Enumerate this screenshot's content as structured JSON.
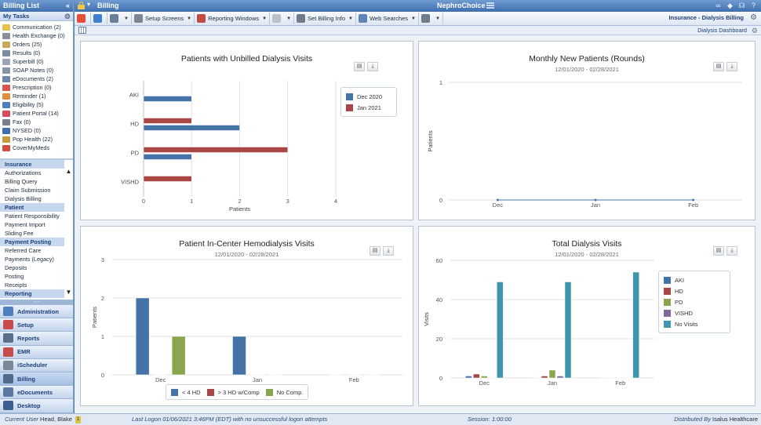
{
  "left_panel": {
    "title": "Billing List",
    "collapse_glyph": "«",
    "tasks_header": "My Tasks",
    "tasks": [
      {
        "label": "Communication (2)",
        "icon": "envelope-icon",
        "color": "#e8c14a"
      },
      {
        "label": "Health Exchange (0)",
        "icon": "exchange-icon",
        "color": "#8a8f99"
      },
      {
        "label": "Orders (25)",
        "icon": "orders-icon",
        "color": "#c9a85a"
      },
      {
        "label": "Results (0)",
        "icon": "results-icon",
        "color": "#7c8da1"
      },
      {
        "label": "Superbill (0)",
        "icon": "superbill-icon",
        "color": "#9aa6b5"
      },
      {
        "label": "SOAP Notes (0)",
        "icon": "soap-notes-icon",
        "color": "#8794a6"
      },
      {
        "label": "eDocuments (2)",
        "icon": "edocuments-icon",
        "color": "#6b86a8"
      },
      {
        "label": "Prescription (0)",
        "icon": "prescription-icon",
        "color": "#d7524a"
      },
      {
        "label": "Reminder (1)",
        "icon": "reminder-icon",
        "color": "#e28b3c"
      },
      {
        "label": "Eligibility (5)",
        "icon": "umbrella-icon",
        "color": "#4f7fc0"
      },
      {
        "label": "Patient Portal (14)",
        "icon": "heart-icon",
        "color": "#d84b5a"
      },
      {
        "label": "Fax (0)",
        "icon": "fax-icon",
        "color": "#7a7f88"
      },
      {
        "label": "NYSED (0)",
        "icon": "nysed-icon",
        "color": "#3d6fb0"
      },
      {
        "label": "Pop Health (22)",
        "icon": "pop-health-icon",
        "color": "#c99a3c"
      },
      {
        "label": "CoverMyMeds",
        "icon": "covermymeds-icon",
        "color": "#d14c3f"
      }
    ],
    "nav": [
      {
        "label": "Insurance",
        "section": true
      },
      {
        "label": "Authorizations",
        "section": false
      },
      {
        "label": "Billing Query",
        "section": false
      },
      {
        "label": "Claim Submission",
        "section": false
      },
      {
        "label": "Dialysis Billing",
        "section": false
      },
      {
        "label": "Patient",
        "section": true
      },
      {
        "label": "Patient Responsibility",
        "section": false
      },
      {
        "label": "Payment Import",
        "section": false
      },
      {
        "label": "Sliding Fee",
        "section": false
      },
      {
        "label": "Payment Posting",
        "section": true
      },
      {
        "label": "Referred Care",
        "section": false
      },
      {
        "label": "Payments (Legacy)",
        "section": false
      },
      {
        "label": "Deposits",
        "section": false
      },
      {
        "label": "Posting",
        "section": false
      },
      {
        "label": "Receipts",
        "section": false
      },
      {
        "label": "Reporting",
        "section": true
      }
    ],
    "grip_text": ".....",
    "modules": [
      {
        "label": "Administration",
        "icon": "administration-icon",
        "color": "#4e7fbf",
        "active": false
      },
      {
        "label": "Setup",
        "icon": "setup-icon",
        "color": "#c94c4c",
        "active": false
      },
      {
        "label": "Reports",
        "icon": "reports-icon",
        "color": "#5a6f8c",
        "active": false
      },
      {
        "label": "EMR",
        "icon": "emr-icon",
        "color": "#c94c4c",
        "active": false
      },
      {
        "label": "iScheduler",
        "icon": "ischeduler-icon",
        "color": "#7a8794",
        "active": false
      },
      {
        "label": "Billing",
        "icon": "billing-icon",
        "color": "#4f6c8f",
        "active": true
      },
      {
        "label": "eDocuments",
        "icon": "edocuments-module-icon",
        "color": "#5b7aa3",
        "active": false
      },
      {
        "label": "Desktop",
        "icon": "desktop-icon",
        "color": "#3c5f8e",
        "active": false
      }
    ]
  },
  "topbar": {
    "module_name": "Billing",
    "brand": "NephroChoice",
    "icons": [
      "binoculars-icon",
      "cap-icon",
      "headset-icon",
      "help-icon"
    ],
    "icon_glyphs": [
      "∞",
      "◆",
      "☊",
      "?"
    ]
  },
  "toolbar": {
    "buttons": [
      {
        "label": "",
        "icon": "home-icon",
        "color": "#e44e39",
        "dropdown": false
      },
      {
        "label": "",
        "icon": "refresh-icon",
        "color": "#3f7fcf",
        "dropdown": false
      },
      {
        "label": "",
        "icon": "card-icon",
        "color": "#6b7f99",
        "dropdown": true
      },
      {
        "label": "Setup Screens",
        "icon": "gear-icon",
        "color": "#7b8797",
        "dropdown": true
      },
      {
        "label": "Reporting Windows",
        "icon": "reporting-windows-icon",
        "color": "#c14a42",
        "dropdown": true
      },
      {
        "label": "",
        "icon": "clock-icon",
        "color": "#b9c1cb",
        "dropdown": true
      },
      {
        "label": "Set Billing Info",
        "icon": "set-billing-icon",
        "color": "#6d7b8c",
        "dropdown": true
      },
      {
        "label": "Web Searches",
        "icon": "web-search-icon",
        "color": "#5e84b8",
        "dropdown": true
      },
      {
        "label": "",
        "icon": "graduation-cap-icon",
        "color": "#6f7c8a",
        "dropdown": true
      }
    ],
    "context_label": "Insurance - Dialysis Billing"
  },
  "subbar": {
    "dashboard_label": "Dialysis Dashboard"
  },
  "panels": {
    "unbilled": {
      "title": "Patients with Unbilled Dialysis Visits"
    },
    "monthly": {
      "title": "Monthly New Patients (Rounds)",
      "subtitle": "12/01/2020 - 02/28/2021"
    },
    "incenter": {
      "title": "Patient In-Center Hemodialysis Visits",
      "subtitle": "12/01/2020 - 02/28/2021"
    },
    "total": {
      "title": "Total Dialysis Visits",
      "subtitle": "12/01/2020 - 02/28/2021"
    }
  },
  "chart_data": [
    {
      "id": "unbilled",
      "type": "bar",
      "orientation": "horizontal",
      "title": "Patients with Unbilled Dialysis Visits",
      "categories": [
        "AKI",
        "HD",
        "PD",
        "VISHD"
      ],
      "series": [
        {
          "name": "Dec 2020",
          "color": "#4572a7",
          "values": [
            1,
            2,
            1,
            0
          ]
        },
        {
          "name": "Jan 2021",
          "color": "#aa4643",
          "values": [
            0,
            1,
            3,
            1
          ]
        }
      ],
      "xlabel": "Patients",
      "xlim": [
        0,
        4
      ],
      "xticks": [
        0,
        1,
        2,
        3,
        4
      ],
      "grid": true,
      "legend": "right"
    },
    {
      "id": "monthly",
      "type": "line",
      "title": "Monthly New Patients (Rounds)",
      "subtitle": "12/01/2020 - 02/28/2021",
      "categories": [
        "Dec",
        "Jan",
        "Feb"
      ],
      "series": [
        {
          "color": "#4572a7",
          "values": [
            0,
            0,
            0
          ]
        }
      ],
      "ylabel": "Patients",
      "ylim": [
        0,
        1
      ],
      "yticks": [
        0,
        1
      ],
      "grid": true,
      "legend": "none"
    },
    {
      "id": "incenter",
      "type": "bar",
      "orientation": "vertical",
      "title": "Patient In-Center Hemodialysis Visits",
      "subtitle": "12/01/2020 - 02/28/2021",
      "categories": [
        "Dec",
        "Jan",
        "Feb"
      ],
      "series": [
        {
          "name": "< 4 HD",
          "color": "#4572a7",
          "values": [
            2,
            1,
            0
          ]
        },
        {
          "name": "> 3 HD w/Comp",
          "color": "#aa4643",
          "values": [
            0,
            0,
            0
          ]
        },
        {
          "name": "No Comp.",
          "color": "#89a54e",
          "values": [
            1,
            0,
            0
          ]
        }
      ],
      "ylabel": "Patients",
      "ylim": [
        0,
        3
      ],
      "yticks": [
        0,
        1,
        2,
        3
      ],
      "grid": true,
      "legend": "bottom"
    },
    {
      "id": "total",
      "type": "bar",
      "orientation": "vertical",
      "title": "Total Dialysis Visits",
      "subtitle": "12/01/2020 - 02/28/2021",
      "categories": [
        "Dec",
        "Jan",
        "Feb"
      ],
      "series": [
        {
          "name": "AKI",
          "color": "#4572a7",
          "values": [
            1,
            0,
            0
          ]
        },
        {
          "name": "HD",
          "color": "#aa4643",
          "values": [
            2,
            1,
            0
          ]
        },
        {
          "name": "PD",
          "color": "#89a54e",
          "values": [
            1,
            4,
            0
          ]
        },
        {
          "name": "VISHD",
          "color": "#80699b",
          "values": [
            0,
            1,
            0
          ]
        },
        {
          "name": "No Visits",
          "color": "#3d96ae",
          "values": [
            49,
            49,
            54
          ]
        }
      ],
      "ylabel": "Visits",
      "ylim": [
        0,
        60
      ],
      "yticks": [
        0,
        20,
        40,
        60
      ],
      "grid": true,
      "legend": "right"
    }
  ],
  "statusbar": {
    "current_user_label": "Current User",
    "current_user": "Head, Blake",
    "user_badge": "1",
    "last_logon": "Last Logon  01/06/2021 3:46PM (EDT)  with no unsuccessful logon attempts",
    "session": "Session: 1:00:00",
    "distributed_label": "Distributed By",
    "distributor": "Isalus Healthcare"
  }
}
